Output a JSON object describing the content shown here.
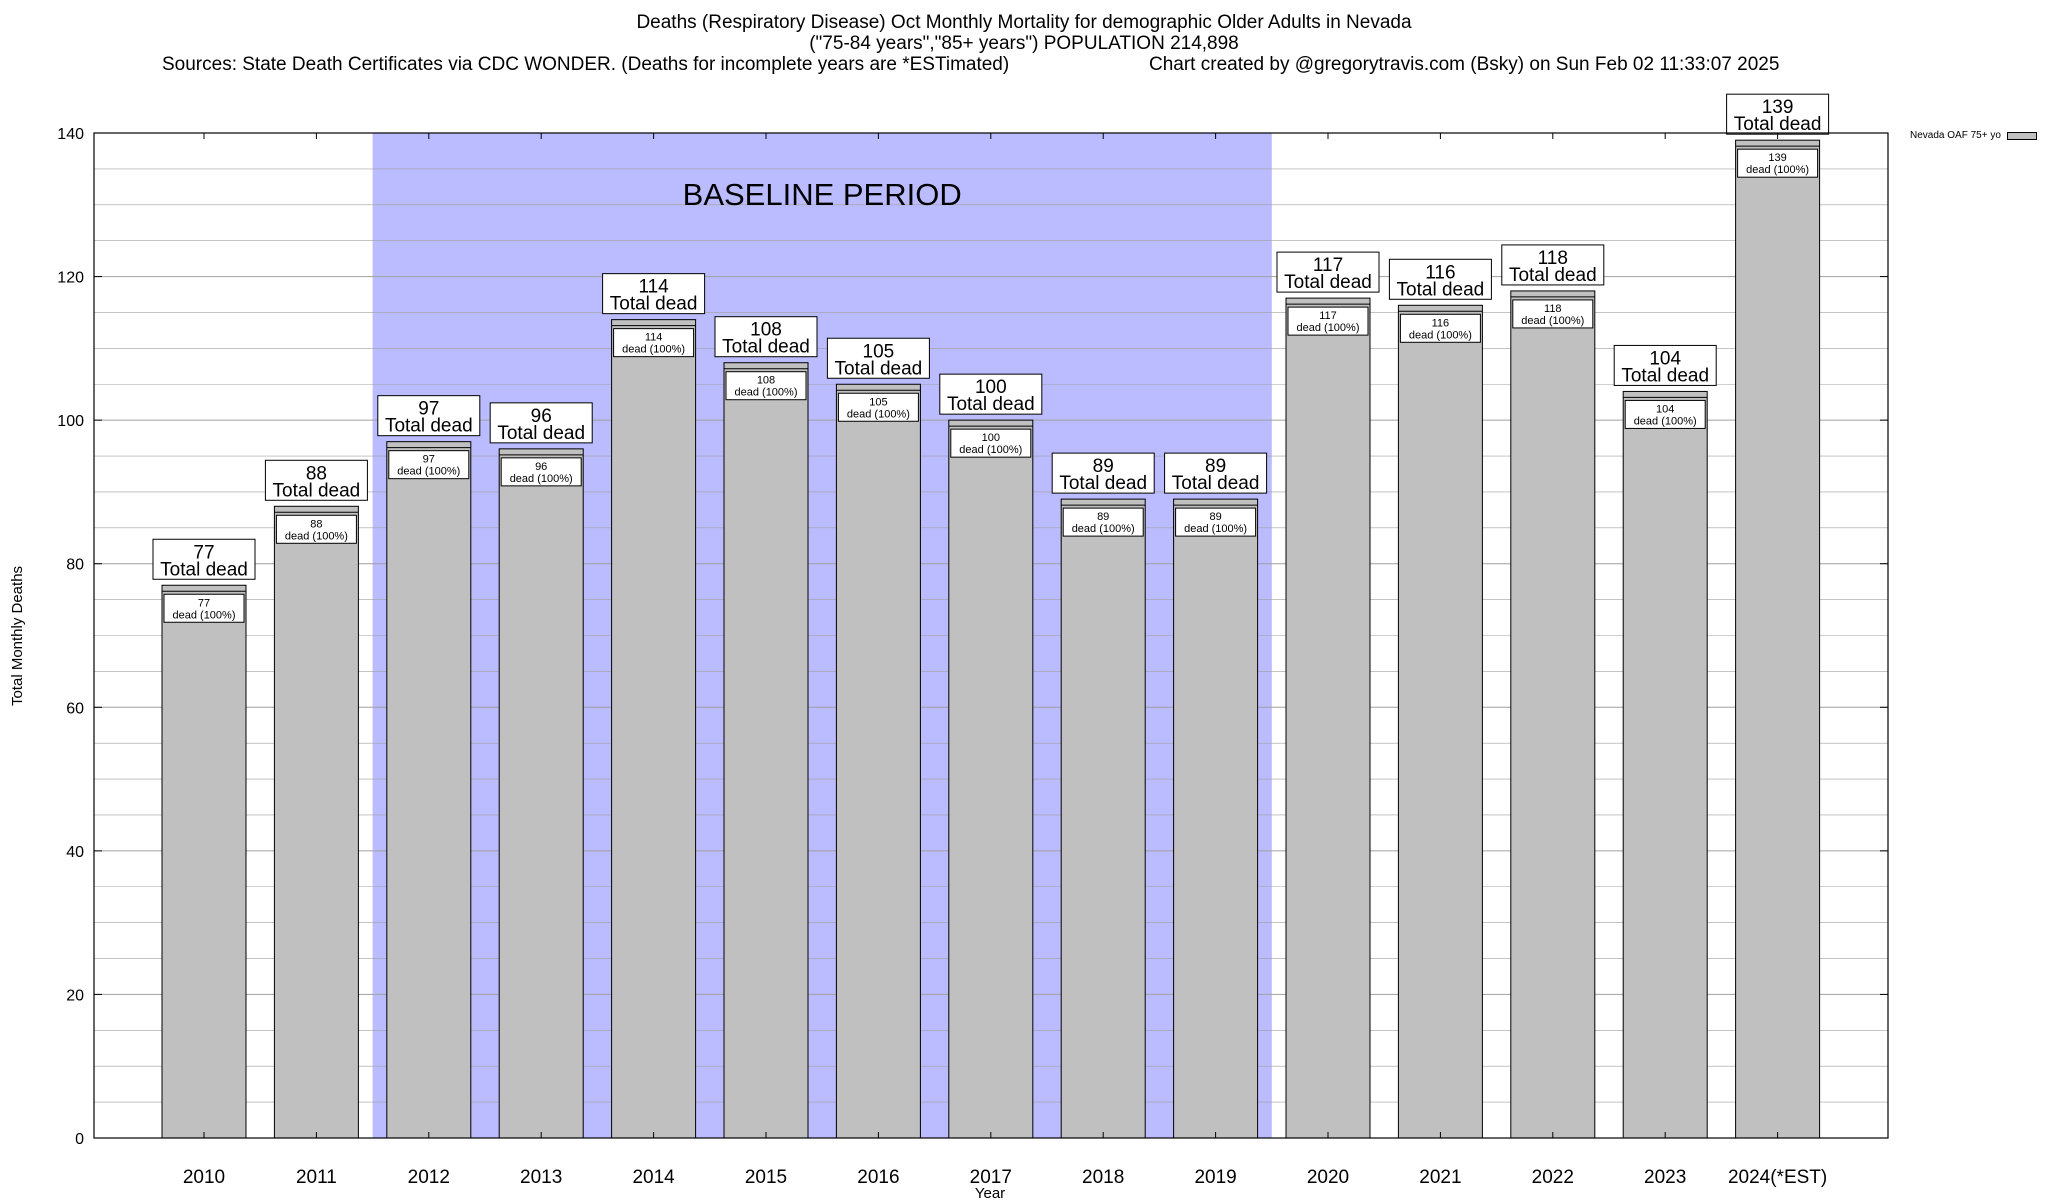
{
  "chart_data": {
    "type": "bar",
    "title_line1": "Deaths (Respiratory Disease) Oct Monthly Mortality for demographic Older Adults in Nevada",
    "title_line2": "(\"75-84 years\",\"85+ years\") POPULATION 214,898",
    "sources": "Sources: State Death Certificates via CDC WONDER. (Deaths for incomplete years are *ESTimated)",
    "credit": "Chart created by @gregorytravis.com (Bsky) on Sun Feb 02 11:33:07 2025",
    "xlabel": "Year",
    "ylabel": "Total Monthly Deaths",
    "ylim": [
      0,
      140
    ],
    "yticks": [
      0,
      20,
      40,
      60,
      80,
      100,
      120,
      140
    ],
    "grid": true,
    "categories": [
      "2010",
      "2011",
      "2012",
      "2013",
      "2014",
      "2015",
      "2016",
      "2017",
      "2018",
      "2019",
      "2020",
      "2021",
      "2022",
      "2023",
      "2024(*EST)"
    ],
    "series": [
      {
        "name": "Nevada OAF 75+ yo",
        "values": [
          77,
          88,
          97,
          96,
          114,
          108,
          105,
          100,
          89,
          89,
          117,
          116,
          118,
          104,
          139
        ]
      }
    ],
    "outer_label_suffix": "Total dead",
    "inner_label_suffix": "dead (100%)",
    "baseline_label": "BASELINE PERIOD",
    "baseline_range": [
      "2012",
      "2019"
    ],
    "legend_position": "top-right"
  },
  "colors": {
    "bar_fill": "#c0c0c0",
    "baseline_fill": "#bbbbff",
    "grid": "#a0a0a0"
  }
}
